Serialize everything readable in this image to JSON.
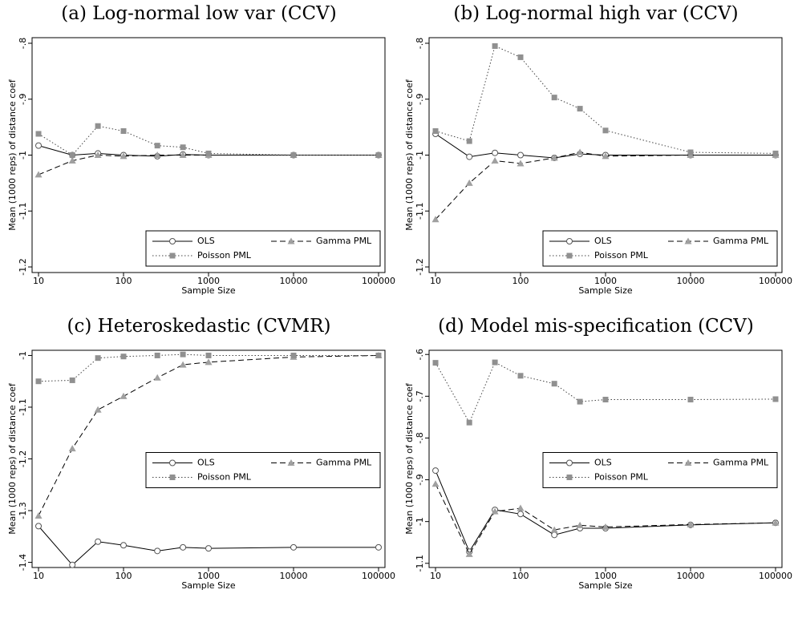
{
  "chart_data": [
    {
      "type": "line",
      "title": "(a) Log-normal low var (CCV)",
      "x_label": "Sample Size",
      "y_label": "Mean (1000 reps) of distance coef",
      "x": [
        10,
        25,
        50,
        100,
        250,
        500,
        1000,
        10000,
        100000
      ],
      "xscale": "log",
      "xlim": [
        8.4,
        119000
      ],
      "xticks": [
        10,
        100,
        1000,
        10000,
        100000
      ],
      "ylim": [
        -1.21,
        -0.79
      ],
      "yticks": [
        {
          "value": -0.8,
          "label": "-.8"
        },
        {
          "value": -0.9,
          "label": "-.9"
        },
        -1,
        {
          "value": -1.1,
          "label": "-1.1"
        },
        {
          "value": -1.2,
          "label": "-1.2"
        }
      ],
      "legend_position": "lower right",
      "series": [
        {
          "name": "OLS",
          "color": "#000000",
          "marker_color": "#555555",
          "style": "solid",
          "marker": "circle",
          "values": [
            -0.983,
            -1.0,
            -0.997,
            -1.0,
            -1.002,
            -0.999,
            -1.0,
            -1.0,
            -1.0
          ]
        },
        {
          "name": "Gamma PML",
          "color": "#000000",
          "marker_color": "#a0a0a0",
          "style": "dash",
          "marker": "triangle",
          "values": [
            -1.035,
            -1.01,
            -1.0,
            -1.002,
            -1.0,
            -1.0,
            -1.0,
            -1.0,
            -1.0
          ]
        },
        {
          "name": "Poisson PML",
          "color": "#444444",
          "marker_color": "#909090",
          "style": "dot",
          "marker": "square",
          "values": [
            -0.962,
            -1.0,
            -0.948,
            -0.957,
            -0.983,
            -0.986,
            -0.997,
            -1.0,
            -1.0
          ]
        }
      ]
    },
    {
      "type": "line",
      "title": "(b) Log-normal high var (CCV)",
      "x_label": "Sample Size",
      "y_label": "Mean (1000 reps) of distance coef",
      "x": [
        10,
        25,
        50,
        100,
        250,
        500,
        1000,
        10000,
        100000
      ],
      "xscale": "log",
      "xlim": [
        8.4,
        119000
      ],
      "xticks": [
        10,
        100,
        1000,
        10000,
        100000
      ],
      "ylim": [
        -1.21,
        -0.79
      ],
      "yticks": [
        {
          "value": -0.8,
          "label": "-.8"
        },
        {
          "value": -0.9,
          "label": "-.9"
        },
        -1,
        {
          "value": -1.1,
          "label": "-1.1"
        },
        {
          "value": -1.2,
          "label": "-1.2"
        }
      ],
      "legend_position": "lower right",
      "series": [
        {
          "name": "OLS",
          "color": "#000000",
          "marker_color": "#555555",
          "style": "solid",
          "marker": "circle",
          "values": [
            -0.962,
            -1.003,
            -0.996,
            -1.0,
            -1.005,
            -0.998,
            -1.0,
            -1.0,
            -1.0
          ]
        },
        {
          "name": "Gamma PML",
          "color": "#000000",
          "marker_color": "#a0a0a0",
          "style": "dash",
          "marker": "triangle",
          "values": [
            -1.115,
            -1.05,
            -1.01,
            -1.015,
            -1.005,
            -0.995,
            -1.002,
            -1.0,
            -1.0
          ]
        },
        {
          "name": "Poisson PML",
          "color": "#444444",
          "marker_color": "#909090",
          "style": "dot",
          "marker": "square",
          "values": [
            -0.957,
            -0.975,
            -0.805,
            -0.825,
            -0.897,
            -0.917,
            -0.956,
            -0.995,
            -0.997
          ]
        }
      ]
    },
    {
      "type": "line",
      "title": "(c) Heteroskedastic (CVMR)",
      "x_label": "Sample Size",
      "y_label": "Mean (1000 reps) of distance coef",
      "x": [
        10,
        25,
        50,
        100,
        250,
        500,
        1000,
        10000,
        100000
      ],
      "xscale": "log",
      "xlim": [
        8.4,
        119000
      ],
      "xticks": [
        10,
        100,
        1000,
        10000,
        100000
      ],
      "ylim": [
        -1.41,
        -0.99
      ],
      "yticks": [
        -1,
        {
          "value": -1.1,
          "label": "-1.1"
        },
        {
          "value": -1.2,
          "label": "-1.2"
        },
        {
          "value": -1.3,
          "label": "-1.3"
        },
        {
          "value": -1.4,
          "label": "-1.4"
        }
      ],
      "legend_position": "center right",
      "series": [
        {
          "name": "OLS",
          "color": "#000000",
          "marker_color": "#555555",
          "style": "solid",
          "marker": "circle",
          "values": [
            -1.33,
            -1.405,
            -1.36,
            -1.367,
            -1.378,
            -1.371,
            -1.373,
            -1.371,
            -1.371
          ]
        },
        {
          "name": "Gamma PML",
          "color": "#000000",
          "marker_color": "#a0a0a0",
          "style": "dash",
          "marker": "triangle",
          "values": [
            -1.31,
            -1.18,
            -1.105,
            -1.079,
            -1.043,
            -1.018,
            -1.013,
            -1.003,
            -1.0
          ]
        },
        {
          "name": "Poisson PML",
          "color": "#444444",
          "marker_color": "#909090",
          "style": "dot",
          "marker": "square",
          "values": [
            -1.05,
            -1.048,
            -1.005,
            -1.002,
            -1.0,
            -0.998,
            -1.0,
            -1.0,
            -1.0
          ]
        }
      ]
    },
    {
      "type": "line",
      "title": "(d) Model mis-specification (CCV)",
      "x_label": "Sample Size",
      "y_label": "Mean (1000 reps) of distance coef",
      "x": [
        10,
        25,
        50,
        100,
        250,
        500,
        1000,
        10000,
        100000
      ],
      "xscale": "log",
      "xlim": [
        8.4,
        119000
      ],
      "xticks": [
        10,
        100,
        1000,
        10000,
        100000
      ],
      "ylim": [
        -1.11,
        -0.59
      ],
      "yticks": [
        {
          "value": -0.6,
          "label": "-.6"
        },
        {
          "value": -0.7,
          "label": "-.7"
        },
        {
          "value": -0.8,
          "label": "-.8"
        },
        {
          "value": -0.9,
          "label": "-.9"
        },
        -1,
        {
          "value": -1.1,
          "label": "-1.1"
        }
      ],
      "legend_position": "center right",
      "series": [
        {
          "name": "OLS",
          "color": "#000000",
          "marker_color": "#555555",
          "style": "solid",
          "marker": "circle",
          "values": [
            -0.878,
            -1.072,
            -0.972,
            -0.982,
            -1.032,
            -1.016,
            -1.016,
            -1.008,
            -1.003
          ]
        },
        {
          "name": "Gamma PML",
          "color": "#000000",
          "marker_color": "#a0a0a0",
          "style": "dash",
          "marker": "triangle",
          "values": [
            -0.91,
            -1.078,
            -0.976,
            -0.968,
            -1.02,
            -1.009,
            -1.013,
            -1.007,
            -1.003
          ]
        },
        {
          "name": "Poisson PML",
          "color": "#444444",
          "marker_color": "#909090",
          "style": "dot",
          "marker": "square",
          "values": [
            -0.62,
            -0.763,
            -0.619,
            -0.651,
            -0.67,
            -0.713,
            -0.708,
            -0.708,
            -0.707
          ]
        }
      ]
    }
  ]
}
